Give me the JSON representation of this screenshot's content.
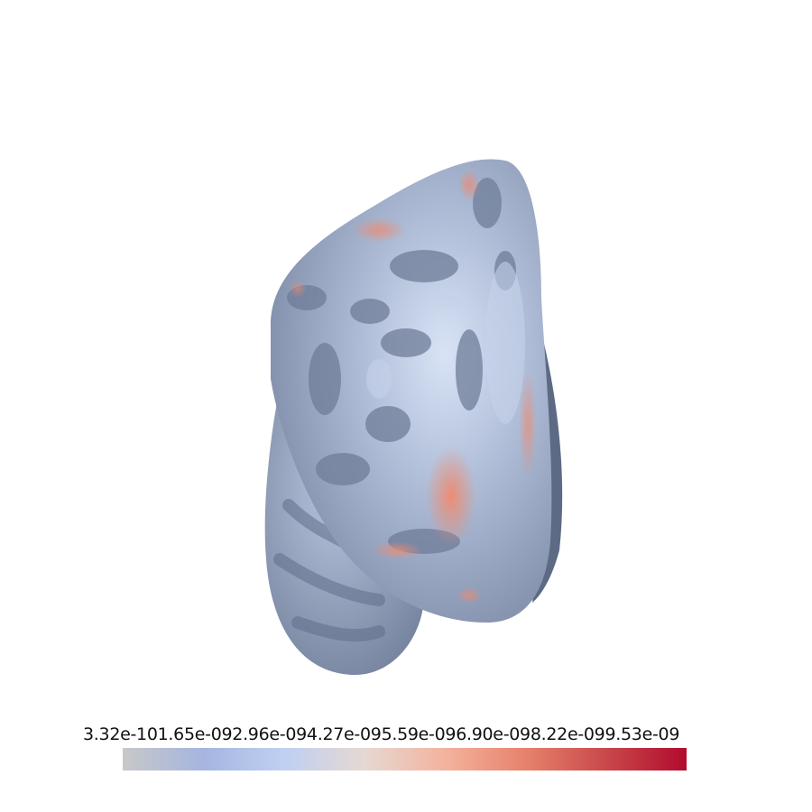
{
  "colorbar": {
    "tick_labels": [
      "3.32e-10",
      "1.65e-09",
      "2.96e-09",
      "4.27e-09",
      "5.59e-09",
      "6.90e-09",
      "8.22e-09",
      "9.53e-09"
    ],
    "colors": [
      "#c8c8c8",
      "#a5b5e0",
      "#bfd0f2",
      "#e6d8d2",
      "#f4b39e",
      "#e6826c",
      "#c9484a",
      "#b10b2e"
    ]
  },
  "surface": {
    "base_color": "#9aa8c2",
    "dark_sulci_color": "#6f7d98",
    "light_gyri_color": "#c5d2ea",
    "hot_color": "#ec8c72"
  }
}
